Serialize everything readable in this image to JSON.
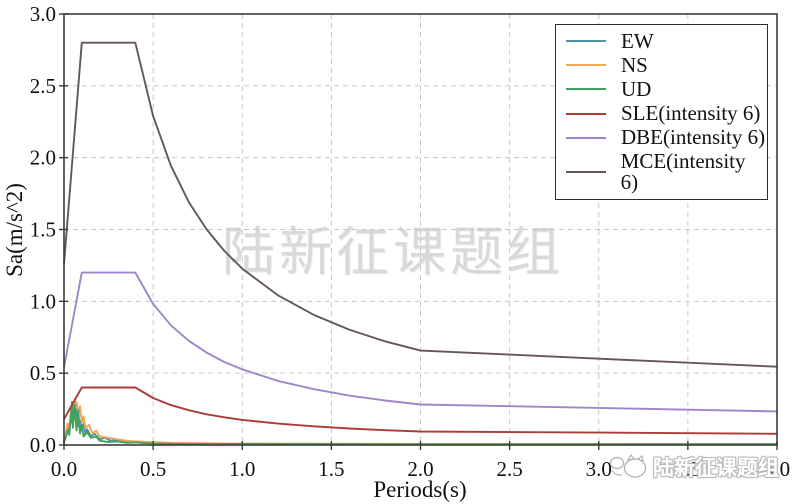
{
  "chart_data": {
    "type": "line",
    "title": "",
    "xlabel": "Periods(s)",
    "ylabel": "Sa(m/s^2)",
    "xlim": [
      0,
      4
    ],
    "ylim": [
      0,
      3
    ],
    "xticks": [
      0,
      0.5,
      1,
      1.5,
      2,
      2.5,
      3,
      3.5,
      4
    ],
    "yticks": [
      0,
      0.5,
      1,
      1.5,
      2,
      2.5,
      3
    ],
    "grid": "dashed",
    "grid_color": "#c6c6c6",
    "axis_color": "#3c3c3c",
    "legend_position": "top-right",
    "series": [
      {
        "name": "EW",
        "color": "#4d92a8",
        "x": [
          0,
          0.01,
          0.02,
          0.03,
          0.04,
          0.05,
          0.055,
          0.06,
          0.07,
          0.08,
          0.09,
          0.1,
          0.11,
          0.12,
          0.13,
          0.15,
          0.17,
          0.2,
          0.23,
          0.26,
          0.3,
          0.35,
          0.4,
          0.5,
          0.6,
          0.8,
          1,
          1.5,
          2,
          3,
          4
        ],
        "y": [
          0.03,
          0.06,
          0.12,
          0.09,
          0.2,
          0.14,
          0.24,
          0.18,
          0.26,
          0.13,
          0.17,
          0.1,
          0.15,
          0.08,
          0.11,
          0.06,
          0.08,
          0.04,
          0.05,
          0.03,
          0.035,
          0.02,
          0.025,
          0.015,
          0.012,
          0.01,
          0.009,
          0.008,
          0.007,
          0.006,
          0.006
        ]
      },
      {
        "name": "NS",
        "color": "#eda757",
        "x": [
          0,
          0.01,
          0.02,
          0.03,
          0.04,
          0.05,
          0.06,
          0.065,
          0.07,
          0.08,
          0.09,
          0.1,
          0.11,
          0.12,
          0.14,
          0.16,
          0.18,
          0.2,
          0.25,
          0.3,
          0.35,
          0.4,
          0.5,
          0.6,
          0.8,
          1,
          1.5,
          2,
          3,
          4
        ],
        "y": [
          0.04,
          0.08,
          0.15,
          0.12,
          0.25,
          0.2,
          0.32,
          0.26,
          0.3,
          0.22,
          0.27,
          0.16,
          0.2,
          0.12,
          0.14,
          0.08,
          0.1,
          0.06,
          0.05,
          0.04,
          0.03,
          0.025,
          0.02,
          0.015,
          0.012,
          0.01,
          0.009,
          0.008,
          0.007,
          0.006
        ]
      },
      {
        "name": "UD",
        "color": "#44a05c",
        "x": [
          0,
          0.01,
          0.02,
          0.03,
          0.04,
          0.045,
          0.05,
          0.06,
          0.07,
          0.08,
          0.09,
          0.1,
          0.11,
          0.13,
          0.15,
          0.18,
          0.2,
          0.25,
          0.3,
          0.35,
          0.4,
          0.5,
          0.7,
          1,
          1.5,
          2,
          3,
          4
        ],
        "y": [
          0.02,
          0.05,
          0.1,
          0.07,
          0.22,
          0.3,
          0.12,
          0.28,
          0.1,
          0.24,
          0.08,
          0.14,
          0.06,
          0.09,
          0.05,
          0.06,
          0.03,
          0.02,
          0.025,
          0.015,
          0.018,
          0.01,
          0.008,
          0.007,
          0.006,
          0.005,
          0.005,
          0.005
        ]
      },
      {
        "name": "SLE(intensity 6)",
        "color": "#ab3c36",
        "x": [
          0,
          0.1,
          0.4,
          0.5,
          0.6,
          0.7,
          0.8,
          0.9,
          1.0,
          1.2,
          1.4,
          1.6,
          1.8,
          2.0,
          2.5,
          3.0,
          3.5,
          4.0
        ],
        "y": [
          0.18,
          0.4,
          0.4,
          0.327,
          0.278,
          0.242,
          0.214,
          0.193,
          0.175,
          0.149,
          0.13,
          0.115,
          0.103,
          0.094,
          0.09,
          0.086,
          0.082,
          0.078
        ]
      },
      {
        "name": "DBE(intensity 6)",
        "color": "#9d87c9",
        "x": [
          0,
          0.1,
          0.4,
          0.5,
          0.6,
          0.7,
          0.8,
          0.9,
          1.0,
          1.2,
          1.4,
          1.6,
          1.8,
          2.0,
          2.5,
          3.0,
          3.5,
          4.0
        ],
        "y": [
          0.54,
          1.2,
          1.2,
          0.982,
          0.833,
          0.725,
          0.643,
          0.578,
          0.526,
          0.446,
          0.389,
          0.344,
          0.31,
          0.282,
          0.27,
          0.258,
          0.246,
          0.234
        ]
      },
      {
        "name": "MCE(intensity 6)",
        "color": "#655757",
        "x": [
          0,
          0.1,
          0.4,
          0.5,
          0.6,
          0.7,
          0.8,
          0.9,
          1.0,
          1.2,
          1.4,
          1.6,
          1.8,
          2.0,
          2.5,
          3.0,
          3.5,
          4.0
        ],
        "y": [
          1.26,
          2.8,
          2.8,
          2.29,
          1.944,
          1.691,
          1.501,
          1.35,
          1.227,
          1.042,
          0.907,
          0.803,
          0.722,
          0.657,
          0.629,
          0.601,
          0.573,
          0.545
        ]
      }
    ]
  },
  "watermarks": {
    "center": "陆新征课题组",
    "corner": "陆新征课题组"
  }
}
